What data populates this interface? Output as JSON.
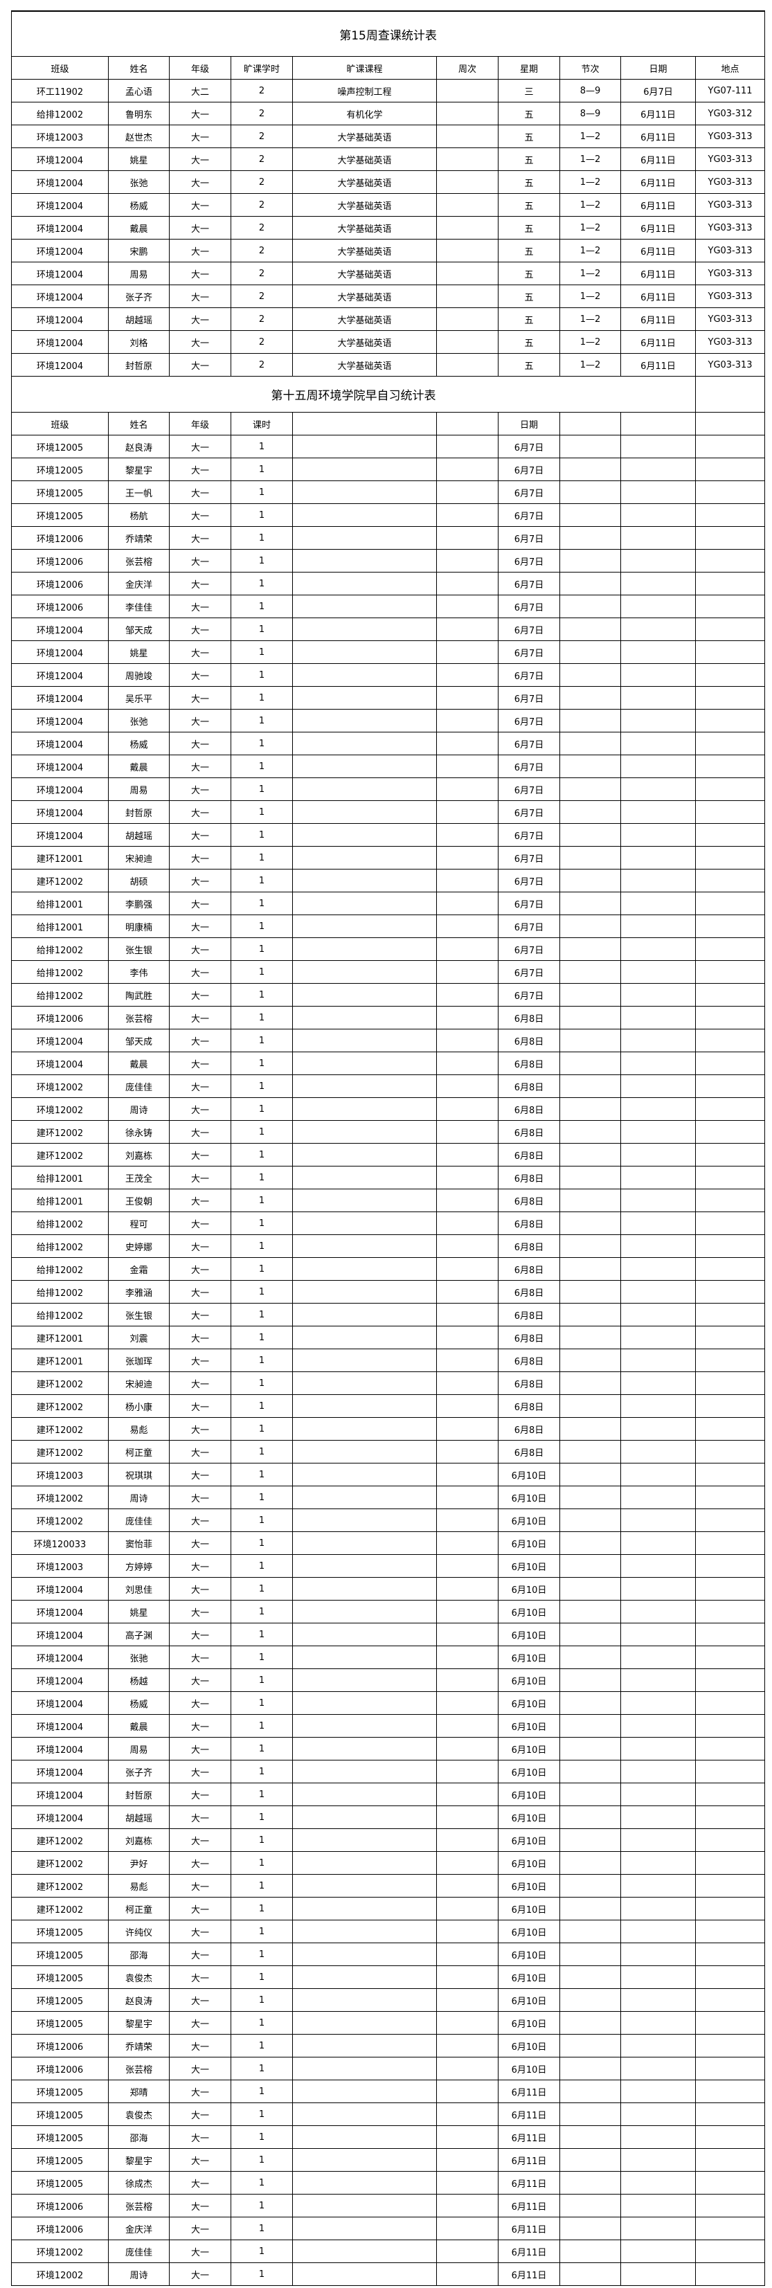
{
  "table1": {
    "title": "第15周查课统计表",
    "headers": [
      "班级",
      "姓名",
      "年级",
      "旷课学时",
      "旷课课程",
      "周次",
      "星期",
      "节次",
      "日期",
      "地点"
    ],
    "rows": [
      [
        "环工11902",
        "孟心语",
        "大二",
        "2",
        "噪声控制工程",
        "",
        "三",
        "8—9",
        "6月7日",
        "YG07-111"
      ],
      [
        "给排12002",
        "鲁明东",
        "大一",
        "2",
        "有机化学",
        "",
        "五",
        "8—9",
        "6月11日",
        "YG03-312"
      ],
      [
        "环境12003",
        "赵世杰",
        "大一",
        "2",
        "大学基础英语",
        "",
        "五",
        "1—2",
        "6月11日",
        "YG03-313"
      ],
      [
        "环境12004",
        "姚星",
        "大一",
        "2",
        "大学基础英语",
        "",
        "五",
        "1—2",
        "6月11日",
        "YG03-313"
      ],
      [
        "环境12004",
        "张弛",
        "大一",
        "2",
        "大学基础英语",
        "",
        "五",
        "1—2",
        "6月11日",
        "YG03-313"
      ],
      [
        "环境12004",
        "杨威",
        "大一",
        "2",
        "大学基础英语",
        "",
        "五",
        "1—2",
        "6月11日",
        "YG03-313"
      ],
      [
        "环境12004",
        "戴晨",
        "大一",
        "2",
        "大学基础英语",
        "",
        "五",
        "1—2",
        "6月11日",
        "YG03-313"
      ],
      [
        "环境12004",
        "宋鹏",
        "大一",
        "2",
        "大学基础英语",
        "",
        "五",
        "1—2",
        "6月11日",
        "YG03-313"
      ],
      [
        "环境12004",
        "周易",
        "大一",
        "2",
        "大学基础英语",
        "",
        "五",
        "1—2",
        "6月11日",
        "YG03-313"
      ],
      [
        "环境12004",
        "张子齐",
        "大一",
        "2",
        "大学基础英语",
        "",
        "五",
        "1—2",
        "6月11日",
        "YG03-313"
      ],
      [
        "环境12004",
        "胡越瑶",
        "大一",
        "2",
        "大学基础英语",
        "",
        "五",
        "1—2",
        "6月11日",
        "YG03-313"
      ],
      [
        "环境12004",
        "刘格",
        "大一",
        "2",
        "大学基础英语",
        "",
        "五",
        "1—2",
        "6月11日",
        "YG03-313"
      ],
      [
        "环境12004",
        "封哲原",
        "大一",
        "2",
        "大学基础英语",
        "",
        "五",
        "1—2",
        "6月11日",
        "YG03-313"
      ]
    ]
  },
  "table2": {
    "title": "第十五周环境学院早自习统计表",
    "headers": [
      "班级",
      "姓名",
      "年级",
      "课时",
      "",
      "",
      "日期",
      "",
      "",
      ""
    ],
    "rows": [
      [
        "环境12005",
        "赵良涛",
        "大一",
        "1",
        "6月7日"
      ],
      [
        "环境12005",
        "黎星宇",
        "大一",
        "1",
        "6月7日"
      ],
      [
        "环境12005",
        "王一帆",
        "大一",
        "1",
        "6月7日"
      ],
      [
        "环境12005",
        "杨航",
        "大一",
        "1",
        "6月7日"
      ],
      [
        "环境12006",
        "乔靖荣",
        "大一",
        "1",
        "6月7日"
      ],
      [
        "环境12006",
        "张芸榕",
        "大一",
        "1",
        "6月7日"
      ],
      [
        "环境12006",
        "金庆洋",
        "大一",
        "1",
        "6月7日"
      ],
      [
        "环境12006",
        "李佳佳",
        "大一",
        "1",
        "6月7日"
      ],
      [
        "环境12004",
        "邹天成",
        "大一",
        "1",
        "6月7日"
      ],
      [
        "环境12004",
        "姚星",
        "大一",
        "1",
        "6月7日"
      ],
      [
        "环境12004",
        "周驰竣",
        "大一",
        "1",
        "6月7日"
      ],
      [
        "环境12004",
        "吴乐平",
        "大一",
        "1",
        "6月7日"
      ],
      [
        "环境12004",
        "张弛",
        "大一",
        "1",
        "6月7日"
      ],
      [
        "环境12004",
        "杨威",
        "大一",
        "1",
        "6月7日"
      ],
      [
        "环境12004",
        "戴晨",
        "大一",
        "1",
        "6月7日"
      ],
      [
        "环境12004",
        "周易",
        "大一",
        "1",
        "6月7日"
      ],
      [
        "环境12004",
        "封哲原",
        "大一",
        "1",
        "6月7日"
      ],
      [
        "环境12004",
        "胡越瑶",
        "大一",
        "1",
        "6月7日"
      ],
      [
        "建环12001",
        "宋昶迪",
        "大一",
        "1",
        "6月7日"
      ],
      [
        "建环12002",
        "胡硕",
        "大一",
        "1",
        "6月7日"
      ],
      [
        "给排12001",
        "李鹏强",
        "大一",
        "1",
        "6月7日"
      ],
      [
        "给排12001",
        "明康楠",
        "大一",
        "1",
        "6月7日"
      ],
      [
        "给排12002",
        "张生银",
        "大一",
        "1",
        "6月7日"
      ],
      [
        "给排12002",
        "李伟",
        "大一",
        "1",
        "6月7日"
      ],
      [
        "给排12002",
        "陶武胜",
        "大一",
        "1",
        "6月7日"
      ],
      [
        "环境12006",
        "张芸榕",
        "大一",
        "1",
        "6月8日"
      ],
      [
        "环境12004",
        "邹天成",
        "大一",
        "1",
        "6月8日"
      ],
      [
        "环境12004",
        "戴晨",
        "大一",
        "1",
        "6月8日"
      ],
      [
        "环境12002",
        "庞佳佳",
        "大一",
        "1",
        "6月8日"
      ],
      [
        "环境12002",
        "周诗",
        "大一",
        "1",
        "6月8日"
      ],
      [
        "建环12002",
        "徐永铸",
        "大一",
        "1",
        "6月8日"
      ],
      [
        "建环12002",
        "刘嘉栋",
        "大一",
        "1",
        "6月8日"
      ],
      [
        "给排12001",
        "王茂全",
        "大一",
        "1",
        "6月8日"
      ],
      [
        "给排12001",
        "王俊朝",
        "大一",
        "1",
        "6月8日"
      ],
      [
        "给排12002",
        "程可",
        "大一",
        "1",
        "6月8日"
      ],
      [
        "给排12002",
        "史婷娜",
        "大一",
        "1",
        "6月8日"
      ],
      [
        "给排12002",
        "金霜",
        "大一",
        "1",
        "6月8日"
      ],
      [
        "给排12002",
        "李雅涵",
        "大一",
        "1",
        "6月8日"
      ],
      [
        "给排12002",
        "张生银",
        "大一",
        "1",
        "6月8日"
      ],
      [
        "建环12001",
        "刘震",
        "大一",
        "1",
        "6月8日"
      ],
      [
        "建环12001",
        "张珈珲",
        "大一",
        "1",
        "6月8日"
      ],
      [
        "建环12002",
        "宋昶迪",
        "大一",
        "1",
        "6月8日"
      ],
      [
        "建环12002",
        "杨小康",
        "大一",
        "1",
        "6月8日"
      ],
      [
        "建环12002",
        "易彪",
        "大一",
        "1",
        "6月8日"
      ],
      [
        "建环12002",
        "柯正童",
        "大一",
        "1",
        "6月8日"
      ],
      [
        "环境12003",
        "祝琪琪",
        "大一",
        "1",
        "6月10日"
      ],
      [
        "环境12002",
        "周诗",
        "大一",
        "1",
        "6月10日"
      ],
      [
        "环境12002",
        "庞佳佳",
        "大一",
        "1",
        "6月10日"
      ],
      [
        "环境120033",
        "窦怡菲",
        "大一",
        "1",
        "6月10日"
      ],
      [
        "环境12003",
        "方婷婷",
        "大一",
        "1",
        "6月10日"
      ],
      [
        "环境12004",
        "刘思佳",
        "大一",
        "1",
        "6月10日"
      ],
      [
        "环境12004",
        "姚星",
        "大一",
        "1",
        "6月10日"
      ],
      [
        "环境12004",
        "高子渊",
        "大一",
        "1",
        "6月10日"
      ],
      [
        "环境12004",
        "张驰",
        "大一",
        "1",
        "6月10日"
      ],
      [
        "环境12004",
        "杨越",
        "大一",
        "1",
        "6月10日"
      ],
      [
        "环境12004",
        "杨威",
        "大一",
        "1",
        "6月10日"
      ],
      [
        "环境12004",
        "戴晨",
        "大一",
        "1",
        "6月10日"
      ],
      [
        "环境12004",
        "周易",
        "大一",
        "1",
        "6月10日"
      ],
      [
        "环境12004",
        "张子齐",
        "大一",
        "1",
        "6月10日"
      ],
      [
        "环境12004",
        "封哲原",
        "大一",
        "1",
        "6月10日"
      ],
      [
        "环境12004",
        "胡越瑶",
        "大一",
        "1",
        "6月10日"
      ],
      [
        "建环12002",
        "刘嘉栋",
        "大一",
        "1",
        "6月10日"
      ],
      [
        "建环12002",
        "尹好",
        "大一",
        "1",
        "6月10日"
      ],
      [
        "建环12002",
        "易彪",
        "大一",
        "1",
        "6月10日"
      ],
      [
        "建环12002",
        "柯正童",
        "大一",
        "1",
        "6月10日"
      ],
      [
        "环境12005",
        "许纯仪",
        "大一",
        "1",
        "6月10日"
      ],
      [
        "环境12005",
        "邵海",
        "大一",
        "1",
        "6月10日"
      ],
      [
        "环境12005",
        "袁俊杰",
        "大一",
        "1",
        "6月10日"
      ],
      [
        "环境12005",
        "赵良涛",
        "大一",
        "1",
        "6月10日"
      ],
      [
        "环境12005",
        "黎星宇",
        "大一",
        "1",
        "6月10日"
      ],
      [
        "环境12006",
        "乔靖荣",
        "大一",
        "1",
        "6月10日"
      ],
      [
        "环境12006",
        "张芸榕",
        "大一",
        "1",
        "6月10日"
      ],
      [
        "环境12005",
        "郑晴",
        "大一",
        "1",
        "6月11日"
      ],
      [
        "环境12005",
        "袁俊杰",
        "大一",
        "1",
        "6月11日"
      ],
      [
        "环境12005",
        "邵海",
        "大一",
        "1",
        "6月11日"
      ],
      [
        "环境12005",
        "黎星宇",
        "大一",
        "1",
        "6月11日"
      ],
      [
        "环境12005",
        "徐成杰",
        "大一",
        "1",
        "6月11日"
      ],
      [
        "环境12006",
        "张芸榕",
        "大一",
        "1",
        "6月11日"
      ],
      [
        "环境12006",
        "金庆洋",
        "大一",
        "1",
        "6月11日"
      ],
      [
        "环境12002",
        "庞佳佳",
        "大一",
        "1",
        "6月11日"
      ],
      [
        "环境12002",
        "周诗",
        "大一",
        "1",
        "6月11日"
      ]
    ]
  }
}
